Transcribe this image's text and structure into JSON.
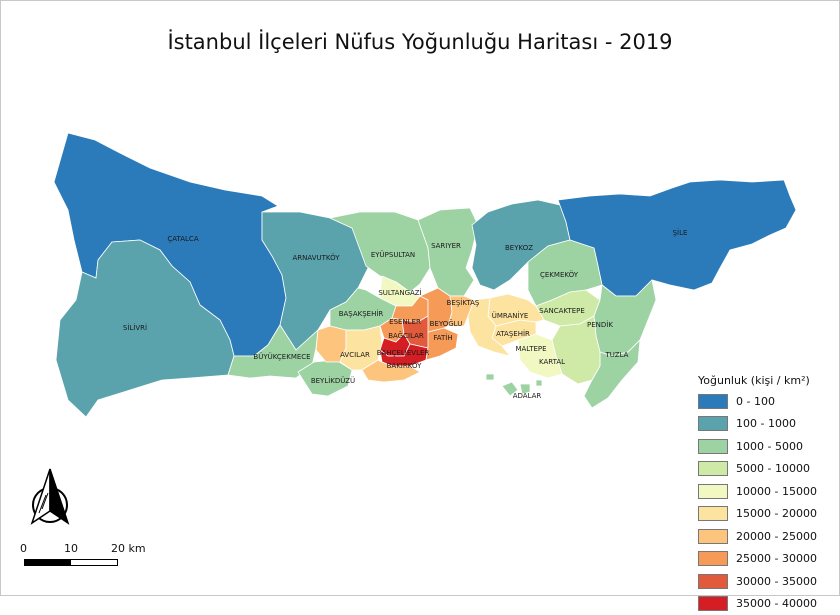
{
  "title": "İstanbul İlçeleri Nüfus Yoğunluğu Haritası - 2019",
  "legend": {
    "title": "Yoğunluk (kişi / km²)",
    "items": [
      {
        "label": "0 - 100",
        "color": "#2b7bba"
      },
      {
        "label": "100 - 1000",
        "color": "#5aa3ad"
      },
      {
        "label": "1000 - 5000",
        "color": "#9dd2a3"
      },
      {
        "label": "5000 - 10000",
        "color": "#cfeaa6"
      },
      {
        "label": "10000 - 15000",
        "color": "#f2f8c2"
      },
      {
        "label": "15000 - 20000",
        "color": "#fde3a0"
      },
      {
        "label": "20000 - 25000",
        "color": "#fdc47e"
      },
      {
        "label": "25000 - 30000",
        "color": "#f59a57"
      },
      {
        "label": "30000 - 35000",
        "color": "#e05a3b"
      },
      {
        "label": "35000 - 40000",
        "color": "#d41e24"
      }
    ]
  },
  "districts": {
    "catalca": "ÇATALCA",
    "silivri": "SİLİVRİ",
    "arnavutkoy": "ARNAVUTKÖY",
    "buyukcekmece": "BÜYÜKÇEKMECE",
    "eyupsultan": "EYÜPSULTAN",
    "sariyer": "SARIYER",
    "beykoz": "BEYKOZ",
    "sile": "ŞİLE",
    "cekmekoy": "ÇEKMEKÖY",
    "sultangazi": "SULTANGAZİ",
    "basaksehir": "BAŞAKŞEHİR",
    "esenler": "ESENLER",
    "besiktas": "BEŞİKTAŞ",
    "beyoglu": "BEYOĞLU",
    "umraniye": "ÜMRANİYE",
    "sancaktepe": "SANCAKTEPE",
    "pendik": "PENDİK",
    "bagcilar": "BAĞCILAR",
    "fatih": "FATİH",
    "atasehir": "ATAŞEHİR",
    "avcilar": "AVCILAR",
    "bahcelievler": "BAHÇELİEVLER",
    "maltepe": "MALTEPE",
    "tuzla": "TUZLA",
    "beylikduzu": "BEYLİKDÜZÜ",
    "bakirkoy": "BAKIRKÖY",
    "kartal": "KARTAL",
    "adalar": "ADALAR"
  },
  "scale": {
    "ticks": [
      "0",
      "10",
      "20 km"
    ]
  }
}
